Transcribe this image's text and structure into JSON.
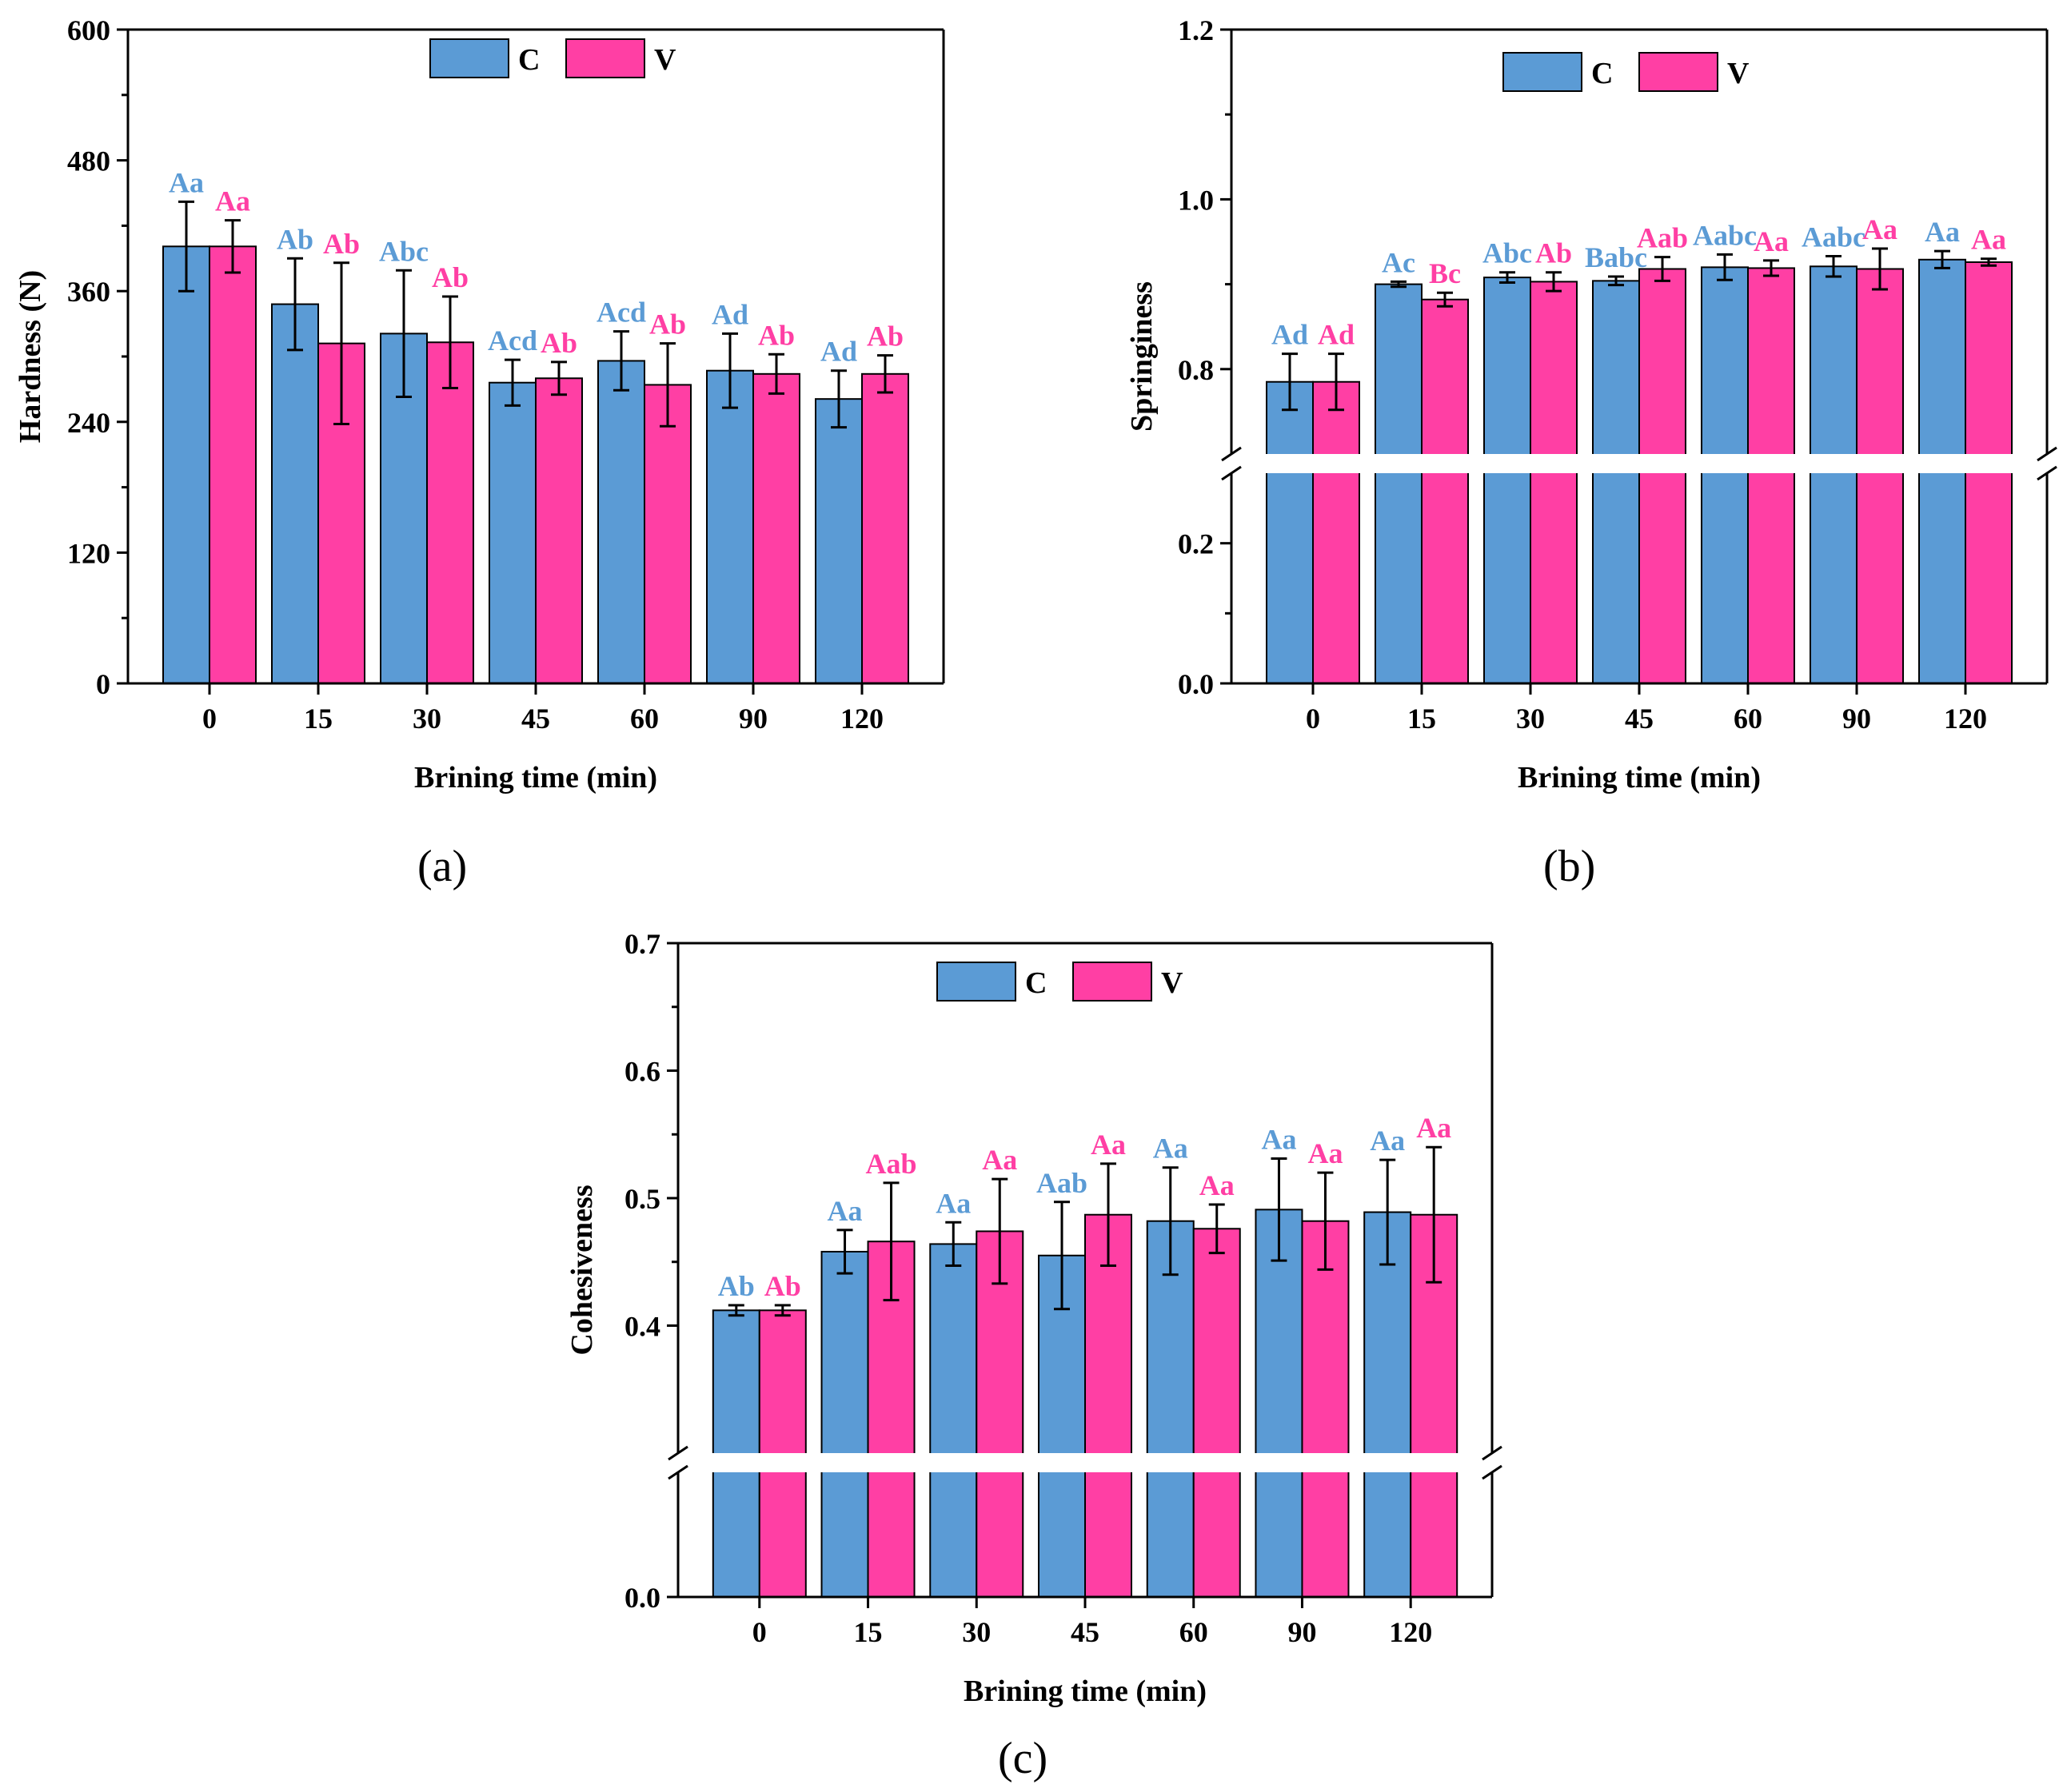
{
  "colors": {
    "C": "#5b9bd5",
    "V": "#ff3fa4",
    "C_label": "#5b9bd5",
    "V_label": "#ff3fa4",
    "axis": "#000000"
  },
  "chart_data": [
    {
      "id": "a",
      "type": "bar",
      "panel_label": "(a)",
      "title": "",
      "xlabel": "Brining time (min)",
      "ylabel": "Hardness (N)",
      "categories": [
        "0",
        "15",
        "30",
        "45",
        "60",
        "90",
        "120"
      ],
      "ylim": [
        0,
        600
      ],
      "yticks": [
        0,
        120,
        240,
        360,
        480,
        600
      ],
      "ytick_labels": [
        "0",
        "120",
        "240",
        "360",
        "480",
        "600"
      ],
      "legend": {
        "position": "top-center",
        "entries": [
          "C",
          "V"
        ]
      },
      "series": [
        {
          "name": "C",
          "values": [
            401,
            348,
            321,
            276,
            296,
            287,
            261
          ],
          "errors": [
            41,
            42,
            58,
            21,
            27,
            34,
            26
          ],
          "labels": [
            "Aa",
            "Ab",
            "Abc",
            "Acd",
            "Acd",
            "Ad",
            "Ad"
          ]
        },
        {
          "name": "V",
          "values": [
            401,
            312,
            313,
            280,
            274,
            284,
            284
          ],
          "errors": [
            24,
            74,
            42,
            15,
            38,
            18,
            17
          ],
          "labels": [
            "Aa",
            "Ab",
            "Ab",
            "Ab",
            "Ab",
            "Ab",
            "Ab"
          ]
        }
      ]
    },
    {
      "id": "b",
      "type": "bar",
      "panel_label": "(b)",
      "title": "",
      "xlabel": "Brining time (min)",
      "ylabel": "Springiness",
      "categories": [
        "0",
        "15",
        "30",
        "45",
        "60",
        "90",
        "120"
      ],
      "ylim": [
        0,
        1.2
      ],
      "axis_break": [
        0.3,
        0.7
      ],
      "yticks": [
        0.0,
        0.2,
        0.8,
        1.0,
        1.2
      ],
      "ytick_labels": [
        "0.0",
        "0.2",
        "0.8",
        "1.0",
        "1.2"
      ],
      "legend": {
        "position": "top-center",
        "entries": [
          "C",
          "V"
        ]
      },
      "series": [
        {
          "name": "C",
          "values": [
            0.785,
            0.9,
            0.908,
            0.904,
            0.92,
            0.921,
            0.929
          ],
          "errors": [
            0.033,
            0.003,
            0.006,
            0.005,
            0.015,
            0.012,
            0.01
          ],
          "labels": [
            "Ad",
            "Ac",
            "Abc",
            "Babc",
            "Aabc",
            "Aabc",
            "Aa"
          ]
        },
        {
          "name": "V",
          "values": [
            0.785,
            0.882,
            0.903,
            0.918,
            0.919,
            0.918,
            0.926
          ],
          "errors": [
            0.033,
            0.008,
            0.011,
            0.014,
            0.009,
            0.024,
            0.004
          ],
          "labels": [
            "Ad",
            "Bc",
            "Ab",
            "Aab",
            "Aa",
            "Aa",
            "Aa"
          ]
        }
      ]
    },
    {
      "id": "c",
      "type": "bar",
      "panel_label": "(c)",
      "title": "",
      "xlabel": "Brining time (min)",
      "ylabel": "Cohesiveness",
      "categories": [
        "0",
        "15",
        "30",
        "45",
        "60",
        "90",
        "120"
      ],
      "ylim": [
        0,
        0.7
      ],
      "axis_break": [
        0.15,
        0.3
      ],
      "yticks": [
        0.0,
        0.4,
        0.5,
        0.6,
        0.7
      ],
      "ytick_labels": [
        "0.0",
        "0.4",
        "0.5",
        "0.6",
        "0.7"
      ],
      "legend": {
        "position": "top-center",
        "entries": [
          "C",
          "V"
        ]
      },
      "series": [
        {
          "name": "C",
          "values": [
            0.412,
            0.458,
            0.464,
            0.455,
            0.482,
            0.491,
            0.489
          ],
          "errors": [
            0.004,
            0.017,
            0.017,
            0.042,
            0.042,
            0.04,
            0.041
          ],
          "labels": [
            "Ab",
            "Aa",
            "Aa",
            "Aab",
            "Aa",
            "Aa",
            "Aa"
          ]
        },
        {
          "name": "V",
          "values": [
            0.412,
            0.466,
            0.474,
            0.487,
            0.476,
            0.482,
            0.487
          ],
          "errors": [
            0.004,
            0.046,
            0.041,
            0.04,
            0.019,
            0.038,
            0.053
          ],
          "labels": [
            "Ab",
            "Aab",
            "Aa",
            "Aa",
            "Aa",
            "Aa",
            "Aa"
          ]
        }
      ]
    }
  ]
}
